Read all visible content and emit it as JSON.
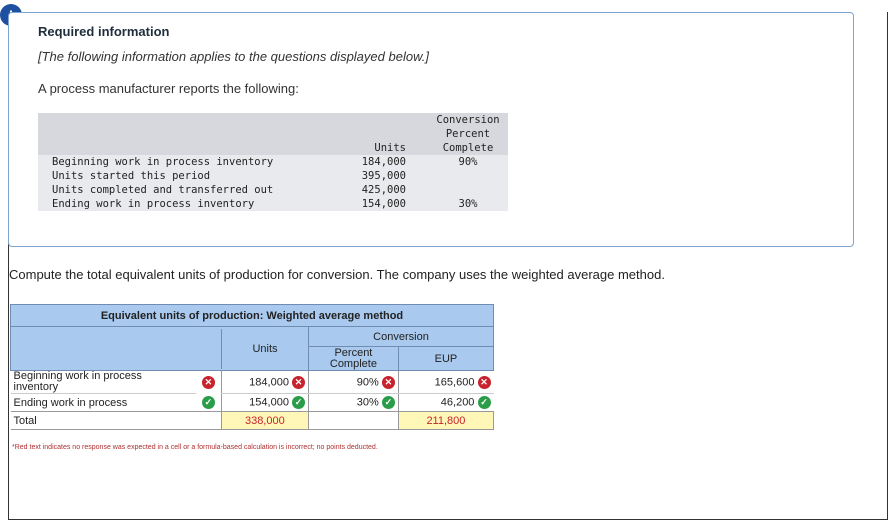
{
  "alert_symbol": "!",
  "required": {
    "title": "Required information",
    "note": "[The following information applies to the questions displayed below.]",
    "intro": "A process manufacturer reports the following:"
  },
  "info_table": {
    "header_units": "Units",
    "header_conv_1": "Conversion",
    "header_conv_2": "Percent",
    "header_conv_3": "Complete",
    "rows": [
      {
        "label": "Beginning work in process inventory",
        "units": "184,000",
        "pct": "90%"
      },
      {
        "label": "Units started this period",
        "units": "395,000",
        "pct": ""
      },
      {
        "label": "Units completed and transferred out",
        "units": "425,000",
        "pct": ""
      },
      {
        "label": "Ending work in process inventory",
        "units": "154,000",
        "pct": "30%"
      }
    ]
  },
  "question": "Compute the total equivalent units of production for conversion. The company uses the weighted average method.",
  "eup_table": {
    "title": "Equivalent units of production: Weighted average method",
    "conversion": "Conversion",
    "units_header": "Units",
    "percent_header_1": "Percent",
    "percent_header_2": "Complete",
    "eup_header": "EUP",
    "rows": [
      {
        "label_1": "Beginning work in process",
        "label_2": "inventory",
        "units": "184,000",
        "pct": "90%",
        "eup": "165,600"
      },
      {
        "label_1": "Ending work in process",
        "label_2": "",
        "units": "154,000",
        "pct": "30%",
        "eup": "46,200"
      }
    ],
    "total_label": "Total",
    "total_units": "338,000",
    "total_eup": "211,800"
  },
  "footnote": "*Red text indicates no response was expected in a cell or a formula-based calculation is incorrect; no points deducted.",
  "colors": {
    "wrong": "#c8232c",
    "correct": "#2a9d4a",
    "table_blue": "#a9c9ee",
    "box_border": "#7da5cf"
  },
  "icons": {
    "wrong": "x-circle-icon",
    "correct": "check-circle-icon"
  }
}
